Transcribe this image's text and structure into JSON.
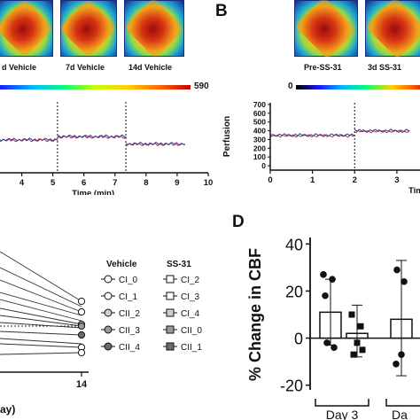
{
  "panelA": {
    "captions": [
      "d Vehicle",
      "7d Vehicle",
      "14d Vehicle"
    ],
    "colorbar_max": "590"
  },
  "panelB": {
    "letter": "B",
    "captions": [
      "Pre-SS-31",
      "3d SS-31"
    ],
    "colorbar_min": "0"
  },
  "panelC": {
    "legend": {
      "vehicle_title": "Vehicle",
      "ss31_title": "SS-31",
      "vehicle_items": [
        "CI_0",
        "CI_1",
        "CII_2",
        "CII_3",
        "CII_4"
      ],
      "ss31_items": [
        "CI_2",
        "CI_3",
        "CI_4",
        "CII_0",
        "CII_1"
      ]
    },
    "x_tick": "14",
    "x_label_fragment": "ay)"
  },
  "panelD": {
    "letter": "D",
    "groups": [
      "Day 3",
      "Da"
    ]
  },
  "colors": {
    "trace_blue": "#2b3a9a",
    "trace_red": "#c0212f",
    "axis": "#111111"
  },
  "chart_data": [
    {
      "type": "line",
      "panel": "A-perfusion",
      "xlabel": "Time (min)",
      "x_ticks": [
        "4",
        "5",
        "6",
        "7",
        "8",
        "9",
        "10"
      ],
      "xlim": [
        3.3,
        10
      ],
      "markers_x": [
        5.15,
        7.35
      ],
      "series": [
        {
          "x": [
            3.3,
            5.15
          ],
          "values": [
            310,
            310
          ]
        },
        {
          "x": [
            5.15,
            7.35
          ],
          "values": [
            345,
            345
          ]
        },
        {
          "x": [
            7.35,
            9.25
          ],
          "values": [
            265,
            265
          ]
        }
      ]
    },
    {
      "type": "line",
      "panel": "B-perfusion",
      "ylabel": "Perfusion",
      "xlabel": "Tim",
      "y_ticks": [
        "0",
        "100",
        "200",
        "300",
        "400",
        "500",
        "600",
        "700"
      ],
      "x_ticks": [
        "0",
        "1",
        "2",
        "3"
      ],
      "ylim": [
        -50,
        720
      ],
      "xlim": [
        0,
        3.3
      ],
      "markers_x": [
        2.0
      ],
      "series": [
        {
          "x": [
            0,
            2.0
          ],
          "values": [
            350,
            350
          ]
        },
        {
          "x": [
            2.0,
            3.3
          ],
          "values": [
            400,
            400
          ]
        }
      ]
    },
    {
      "type": "bar",
      "panel": "D",
      "ylabel": "% Change in CBF",
      "y_ticks": [
        "-20",
        "0",
        "20",
        "40"
      ],
      "ylim": [
        -22,
        42
      ],
      "bars": [
        {
          "group": "Day 3",
          "kind": "vehicle",
          "value": 11,
          "err_low": -3,
          "err_high": 25,
          "points": [
            27,
            25,
            18,
            -2,
            -4
          ]
        },
        {
          "group": "Day 3",
          "kind": "ss31",
          "value": 2,
          "err_low": -8,
          "err_high": 14,
          "points": [
            10,
            5,
            -2,
            -7,
            -5
          ]
        },
        {
          "group": "Da",
          "kind": "vehicle",
          "value": 8,
          "err_low": -16,
          "err_high": 33,
          "points": [
            29,
            24,
            -7,
            -11
          ]
        }
      ]
    }
  ]
}
